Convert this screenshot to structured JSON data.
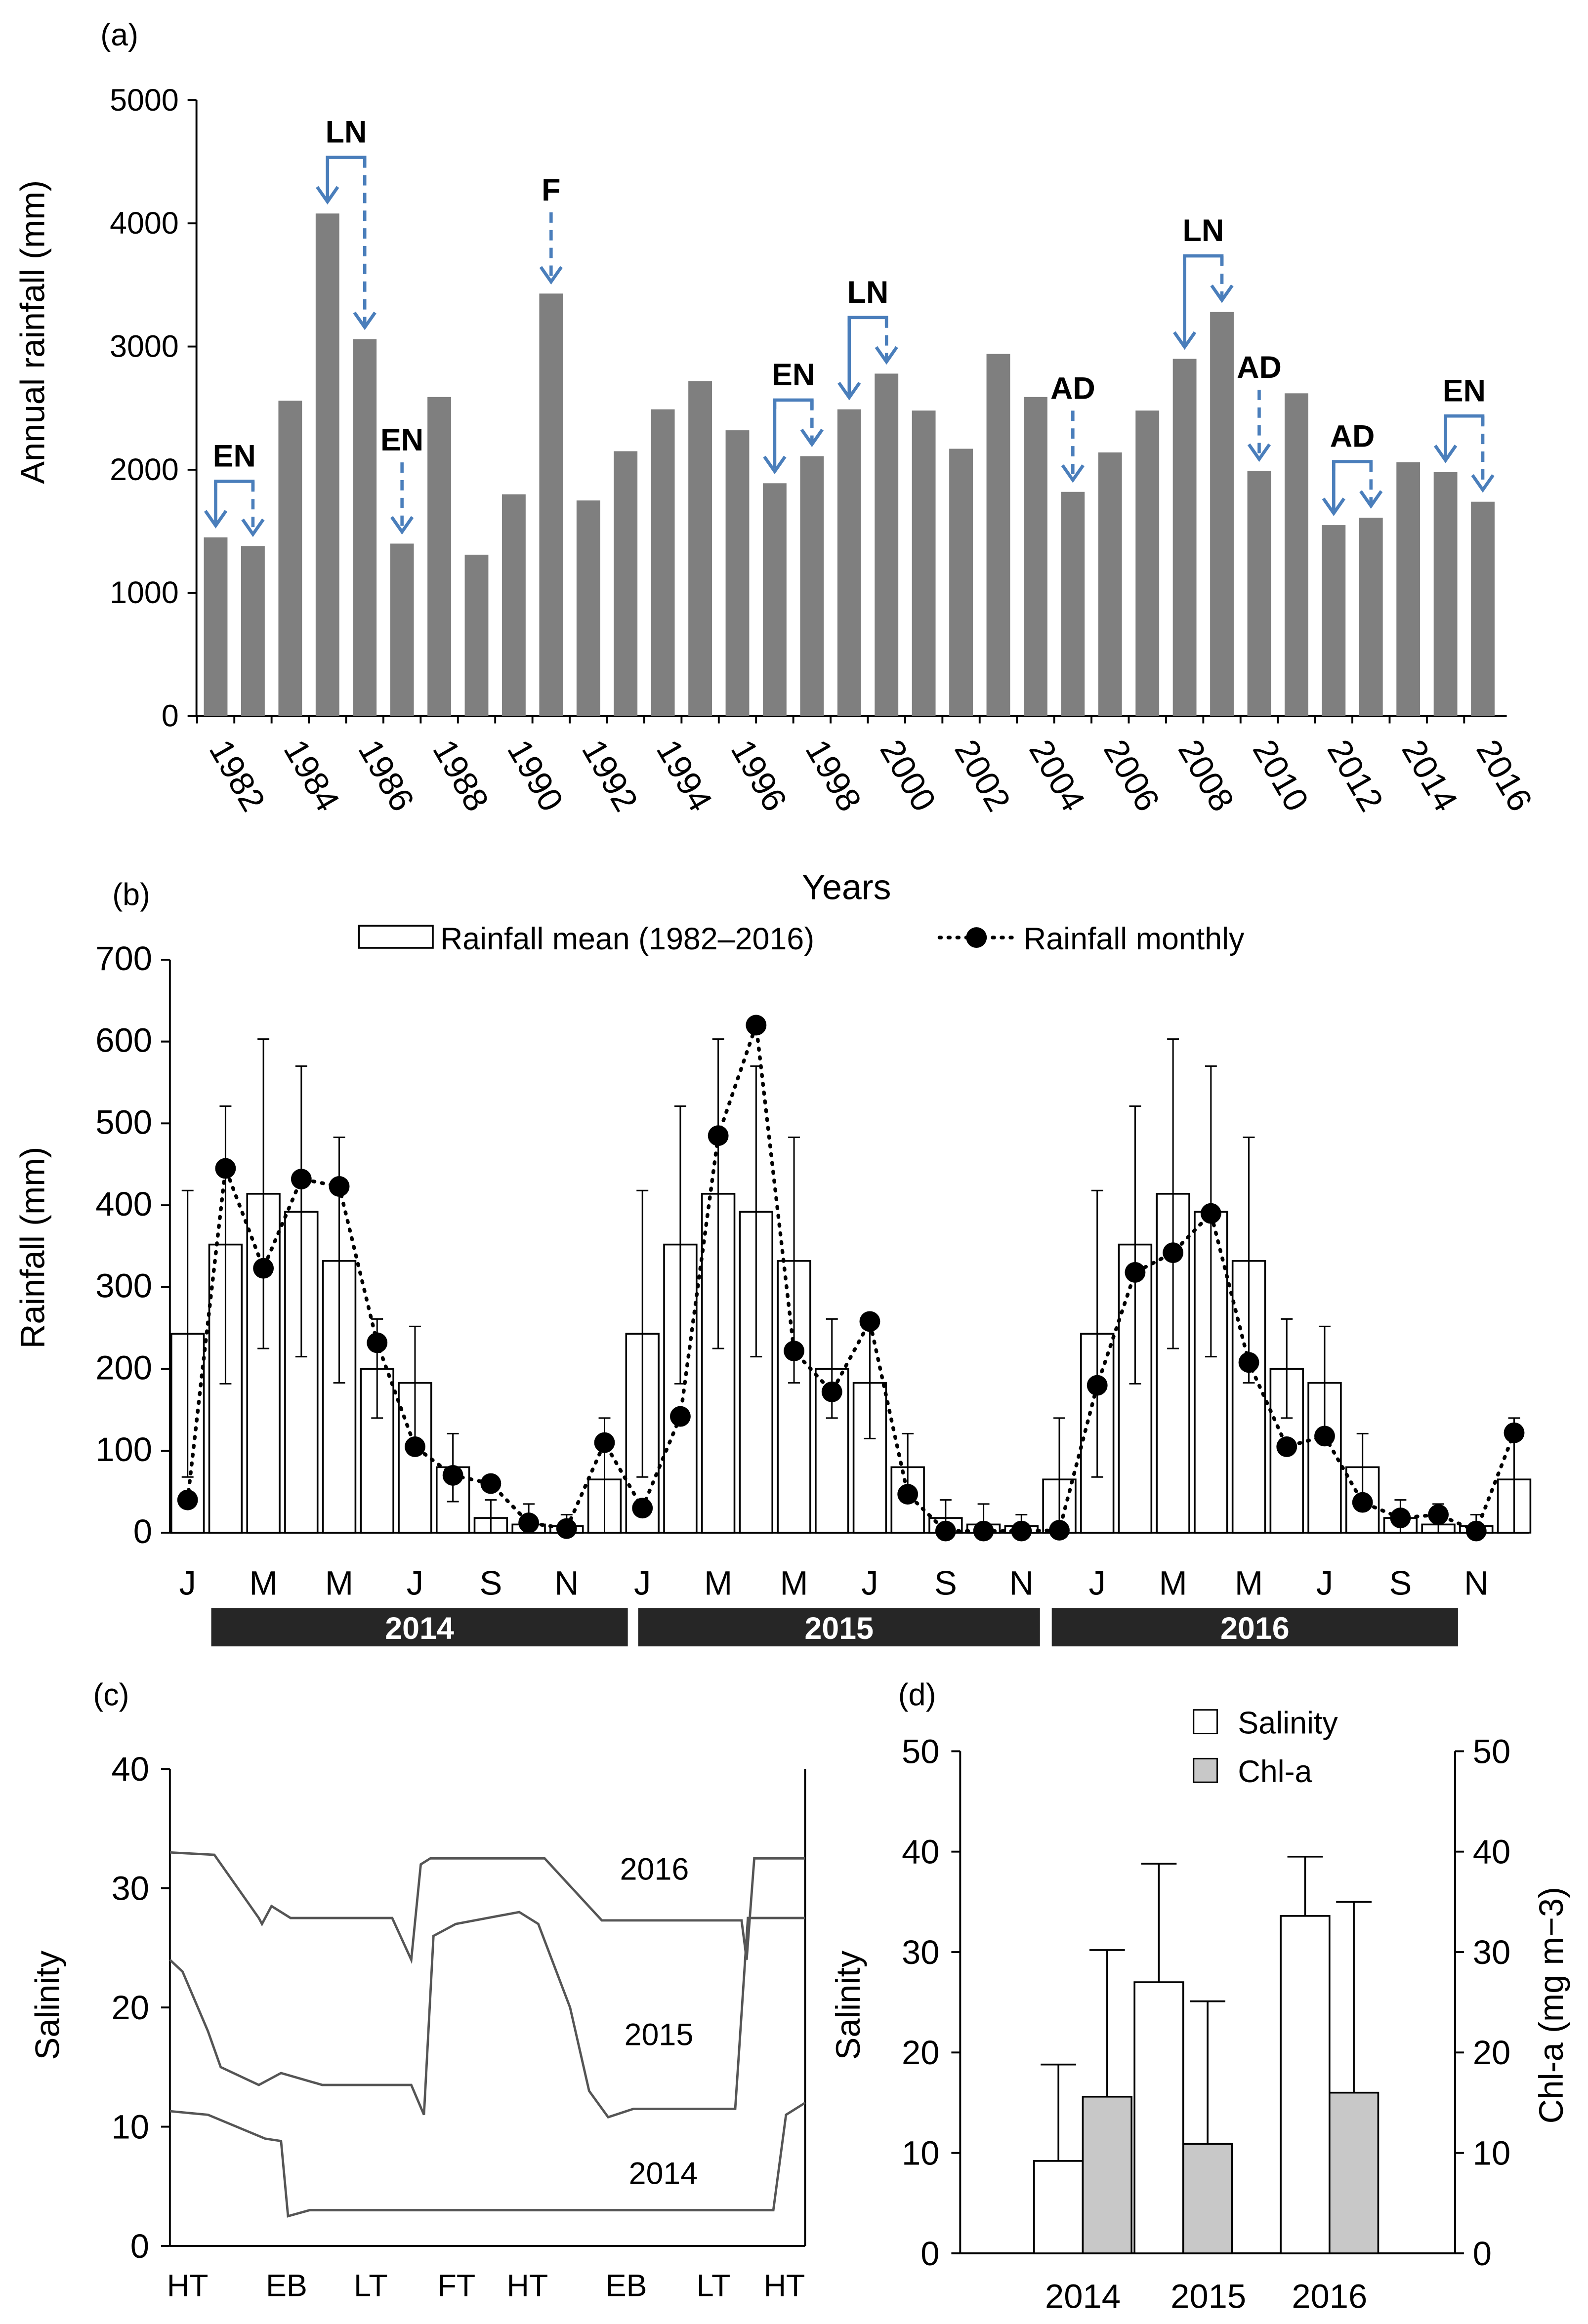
{
  "chart_data": [
    {
      "type": "bar",
      "panel_label": "(a)",
      "xlabel": "Years",
      "ylabel": "Annual rainfall (mm)",
      "ylim": [
        0,
        5000
      ],
      "yticks": [
        0,
        1000,
        2000,
        3000,
        4000,
        5000
      ],
      "x": [
        1982,
        1983,
        1984,
        1985,
        1986,
        1987,
        1988,
        1989,
        1990,
        1991,
        1992,
        1993,
        1994,
        1995,
        1996,
        1997,
        1998,
        1999,
        2000,
        2001,
        2002,
        2003,
        2004,
        2005,
        2006,
        2007,
        2008,
        2009,
        2010,
        2011,
        2012,
        2013,
        2014,
        2015,
        2016
      ],
      "values": [
        1450,
        1380,
        2560,
        4080,
        3060,
        1400,
        2590,
        1310,
        1800,
        3430,
        1750,
        2150,
        2490,
        2720,
        2320,
        1890,
        2110,
        2490,
        2780,
        2480,
        2170,
        2940,
        2590,
        1820,
        2140,
        2480,
        2900,
        3280,
        1990,
        2620,
        1550,
        1610,
        2060,
        1980,
        1740
      ],
      "xtick_labels": [
        "1982",
        "1984",
        "1986",
        "1988",
        "1990",
        "1992",
        "1994",
        "1996",
        "1998",
        "2000",
        "2002",
        "2004",
        "2006",
        "2008",
        "2010",
        "2012",
        "2014",
        "2016"
      ],
      "bar_color": "#7f7f7f",
      "arrow_color": "#4a7ebb",
      "annotations": [
        {
          "label": "EN",
          "bars": [
            0,
            1
          ]
        },
        {
          "label": "LN",
          "bars": [
            3,
            4
          ]
        },
        {
          "label": "EN",
          "bars": [
            5
          ]
        },
        {
          "label": "F",
          "bars": [
            9
          ]
        },
        {
          "label": "EN",
          "bars": [
            15,
            16
          ]
        },
        {
          "label": "LN",
          "bars": [
            17,
            18
          ]
        },
        {
          "label": "AD",
          "bars": [
            23
          ]
        },
        {
          "label": "LN",
          "bars": [
            26,
            27
          ]
        },
        {
          "label": "AD",
          "bars": [
            28
          ]
        },
        {
          "label": "AD",
          "bars": [
            30,
            31
          ]
        },
        {
          "label": "EN",
          "bars": [
            33,
            34
          ]
        }
      ]
    },
    {
      "type": "bar+line",
      "panel_label": "(b)",
      "ylabel": "Rainfall (mm)",
      "ylim": [
        0,
        700
      ],
      "yticks": [
        0,
        100,
        200,
        300,
        400,
        500,
        600,
        700
      ],
      "legend": [
        "Rainfall mean (1982–2016)",
        "Rainfall monthly"
      ],
      "month_tick_labels": [
        "J",
        "M",
        "M",
        "J",
        "S",
        "N"
      ],
      "years": [
        "2014",
        "2015",
        "2016"
      ],
      "mean_monthly": [
        243,
        352,
        414,
        392,
        332,
        200,
        183,
        80,
        18,
        10,
        8,
        65
      ],
      "mean_err_upper": [
        418,
        521,
        603,
        570,
        483,
        261,
        252,
        121,
        40,
        35,
        22,
        140
      ],
      "mean_err_lower": [
        68,
        182,
        225,
        215,
        183,
        140,
        115,
        38,
        0,
        0,
        0,
        0
      ],
      "monthly": [
        40,
        445,
        323,
        432,
        423,
        232,
        105,
        70,
        60,
        12,
        5,
        110,
        30,
        142,
        485,
        620,
        222,
        172,
        258,
        47,
        2,
        2,
        2,
        3,
        180,
        318,
        342,
        390,
        208,
        105,
        118,
        37,
        18,
        22,
        2,
        122
      ]
    },
    {
      "type": "line",
      "panel_label": "(c)",
      "ylabel": "Salinity",
      "ylim": [
        0,
        40
      ],
      "yticks": [
        0,
        10,
        20,
        30,
        40
      ],
      "xtick_labels": [
        "HT",
        "EB",
        "LT",
        "FT",
        "HT",
        "EB",
        "LT",
        "HT"
      ],
      "series": [
        {
          "name": "2016",
          "x": [
            0,
            7,
            14,
            14.5,
            16,
            19,
            35,
            38,
            39.5,
            41,
            59,
            68,
            90,
            90.8,
            92,
            100
          ],
          "y": [
            33,
            32.8,
            27.5,
            27,
            28.5,
            27.5,
            27.5,
            24,
            32,
            32.5,
            32.5,
            27.3,
            27.3,
            24,
            32.5,
            32.5
          ]
        },
        {
          "name": "2015",
          "x": [
            0,
            2,
            6,
            8,
            14,
            17.5,
            24,
            38,
            40,
            41.5,
            45,
            55,
            58,
            63,
            66,
            69,
            73,
            89,
            91,
            100
          ],
          "y": [
            24,
            23,
            18,
            15,
            13.5,
            14.5,
            13.5,
            13.5,
            11,
            26,
            27,
            28,
            27,
            20,
            13,
            10.8,
            11.5,
            11.5,
            27.5,
            27.5
          ]
        },
        {
          "name": "2014",
          "x": [
            0,
            6,
            10.5,
            15,
            17.5,
            18.6,
            22,
            95,
            97,
            100
          ],
          "y": [
            11.3,
            11,
            10,
            9,
            8.8,
            2.5,
            3,
            3,
            11,
            12
          ]
        }
      ]
    },
    {
      "type": "bar",
      "panel_label": "(d)",
      "ylabel_left": "Salinity",
      "ylabel_right": "Chl-a (mg m−3)",
      "ylim": [
        0,
        50
      ],
      "yticks": [
        0,
        10,
        20,
        30,
        40,
        50
      ],
      "categories": [
        "2014",
        "2015",
        "2016"
      ],
      "series": [
        {
          "name": "Salinity",
          "values": [
            9.2,
            27,
            33.6
          ],
          "err_upper": [
            18.8,
            38.8,
            39.5
          ],
          "color": "#ffffff"
        },
        {
          "name": "Chl-a",
          "values": [
            15.6,
            10.9,
            16
          ],
          "err_upper": [
            30.2,
            25.1,
            35
          ],
          "color": "#c8c8c8"
        }
      ]
    }
  ]
}
